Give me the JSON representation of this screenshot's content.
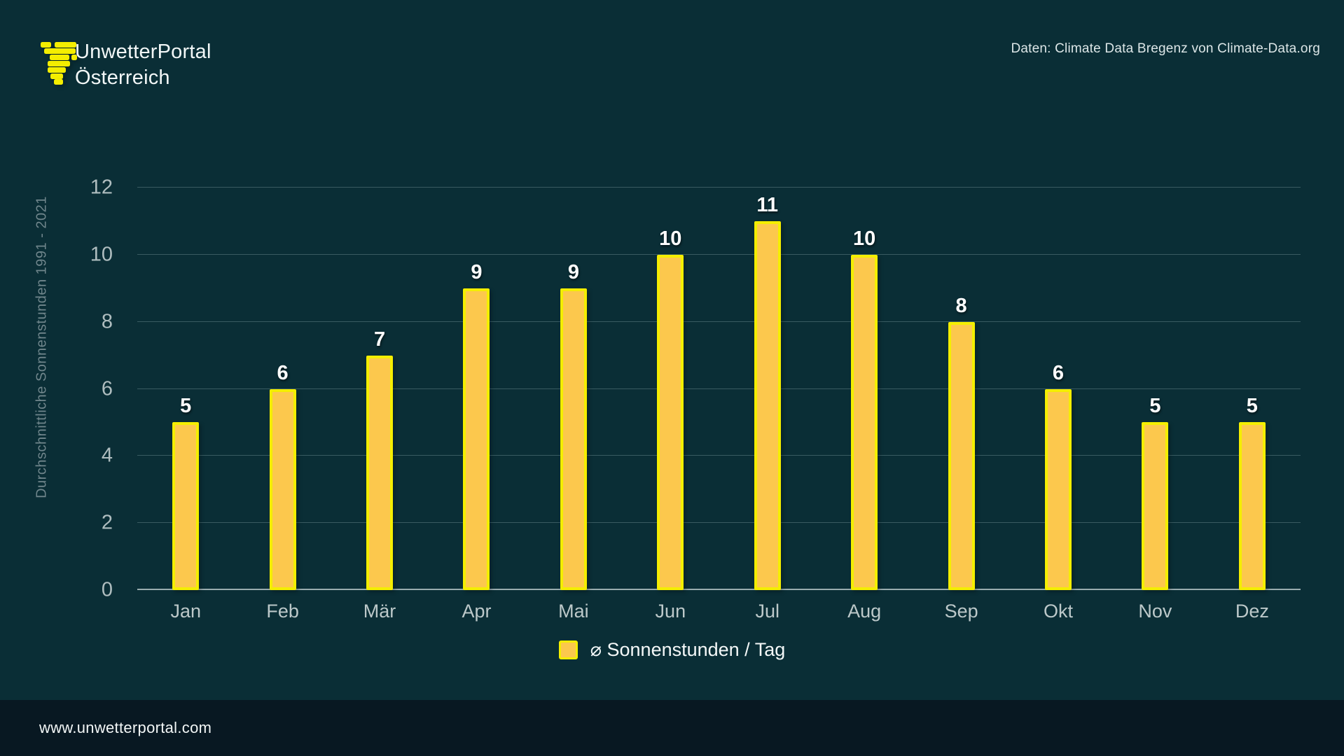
{
  "header": {
    "brand_line1": "UnwetterPortal",
    "brand_line2": "Österreich",
    "data_note": "Daten: Climate Data Bregenz von Climate-Data.org"
  },
  "chart_data": {
    "type": "bar",
    "categories": [
      "Jan",
      "Feb",
      "Mär",
      "Apr",
      "Mai",
      "Jun",
      "Jul",
      "Aug",
      "Sep",
      "Okt",
      "Nov",
      "Dez"
    ],
    "values": [
      5,
      6,
      7,
      9,
      9,
      10,
      11,
      10,
      8,
      6,
      5,
      5
    ],
    "title": "",
    "xlabel": "",
    "ylabel": "Durchschnittliche Sonnenstunden 1991 - 2021",
    "ylim": [
      0,
      12
    ],
    "yticks": [
      0,
      2,
      4,
      6,
      8,
      10,
      12
    ],
    "grid": true,
    "legend_position": "bottom",
    "series_name": "⌀ Sonnenstunden / Tag"
  },
  "legend": {
    "label": "⌀ Sonnenstunden / Tag"
  },
  "footer": {
    "url": "www.unwetterportal.com"
  },
  "colors": {
    "background": "#0A2E36",
    "footer_background": "#081822",
    "bar_fill": "#FCC84D",
    "bar_border": "#F4EE00",
    "gridline": "rgba(170,195,199,0.30)",
    "axis_line": "#9AACAF",
    "value_label": "#FFFFFF",
    "tick_label": "#AFBDBF",
    "month_label": "#BCC8C9",
    "y_title": "#70868C"
  }
}
